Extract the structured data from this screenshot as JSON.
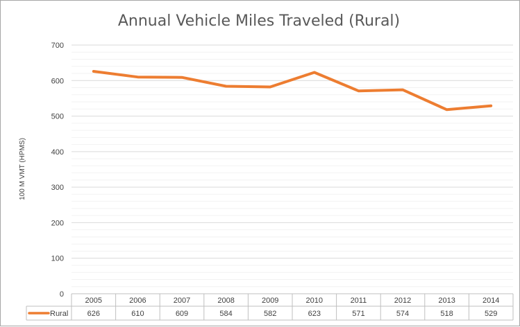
{
  "chart_data": {
    "type": "line",
    "title": "Annual Vehicle Miles Traveled (Rural)",
    "ylabel": "100 M VMT (HPMS)",
    "xlabel": "",
    "ylim": [
      0,
      700
    ],
    "yticks": [
      0,
      100,
      200,
      300,
      400,
      500,
      600,
      700
    ],
    "minor_grid_step": 20,
    "grid": true,
    "legend": "data-table-left",
    "categories": [
      "2005",
      "2006",
      "2007",
      "2008",
      "2009",
      "2010",
      "2011",
      "2012",
      "2013",
      "2014"
    ],
    "series": [
      {
        "name": "Rural",
        "color": "#ed7d31",
        "values": [
          626,
          610,
          609,
          584,
          582,
          623,
          571,
          574,
          518,
          529
        ]
      }
    ]
  }
}
